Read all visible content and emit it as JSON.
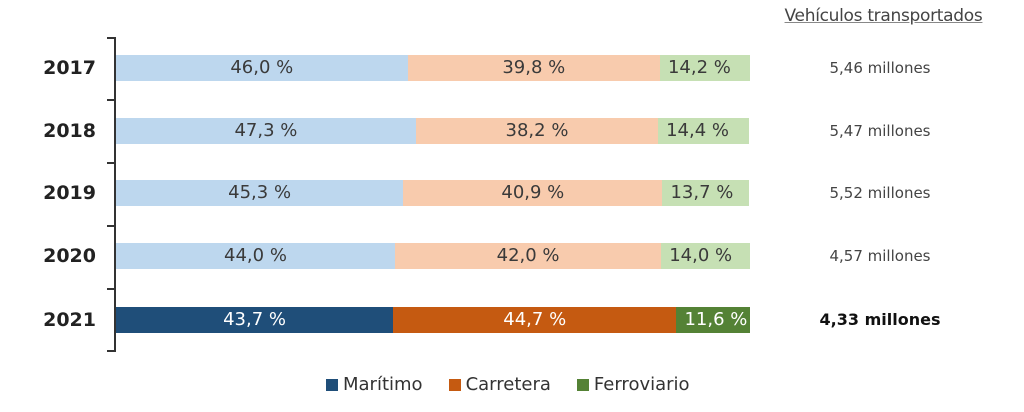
{
  "chart_data": {
    "type": "bar",
    "orientation": "horizontal",
    "stacked": true,
    "percent_stacked": true,
    "title": "Vehículos transportados",
    "xlabel": "",
    "ylabel": "",
    "categories": [
      "2017",
      "2018",
      "2019",
      "2020",
      "2021"
    ],
    "series": [
      {
        "name": "Marítimo",
        "values": [
          46.0,
          47.3,
          45.3,
          44.0,
          43.7
        ],
        "labels": [
          "46,0 %",
          "47,3 %",
          "45,3 %",
          "44,0 %",
          "43,7 %"
        ]
      },
      {
        "name": "Carretera",
        "values": [
          39.8,
          38.2,
          40.9,
          42.0,
          44.7
        ],
        "labels": [
          "39,8 %",
          "38,2 %",
          "40,9 %",
          "42,0 %",
          "44,7 %"
        ]
      },
      {
        "name": "Ferroviario",
        "values": [
          14.2,
          14.4,
          13.7,
          14.0,
          11.6
        ],
        "labels": [
          "14,2 %",
          "14,4 %",
          "13,7 %",
          "14,0 %",
          "11,6 %"
        ]
      }
    ],
    "totals": [
      "5,46 millones",
      "5,47 millones",
      "5,52 millones",
      "4,57 millones",
      "4,33 millones"
    ],
    "totals_header": "Vehículos transportados",
    "highlighted_category": "2021",
    "legend_position": "bottom",
    "grid": false,
    "xlim": [
      0,
      100
    ]
  },
  "colors": {
    "maritimo_light": "#bdd7ee",
    "carretera_light": "#f8cbad",
    "ferroviario_light": "#c6e0b4",
    "maritimo_dark": "#1f4e79",
    "carretera_dark": "#c55a11",
    "ferroviario_dark": "#548235"
  },
  "rows": [
    {
      "year": "2017",
      "m": "46,0 %",
      "c": "39,8 %",
      "f": "14,2 %",
      "total": "5,46 millones"
    },
    {
      "year": "2018",
      "m": "47,3 %",
      "c": "38,2 %",
      "f": "14,4 %",
      "total": "5,47 millones"
    },
    {
      "year": "2019",
      "m": "45,3 %",
      "c": "40,9 %",
      "f": "13,7 %",
      "total": "5,52 millones"
    },
    {
      "year": "2020",
      "m": "44,0 %",
      "c": "42,0 %",
      "f": "14,0 %",
      "total": "4,57 millones"
    },
    {
      "year": "2021",
      "m": "43,7 %",
      "c": "44,7 %",
      "f": "11,6 %",
      "total": "4,33 millones"
    }
  ],
  "legend": [
    {
      "label": "Marítimo",
      "color": "#1f4e79"
    },
    {
      "label": "Carretera",
      "color": "#c55a11"
    },
    {
      "label": "Ferroviario",
      "color": "#548235"
    }
  ],
  "header": {
    "title": "Vehículos transportados"
  }
}
